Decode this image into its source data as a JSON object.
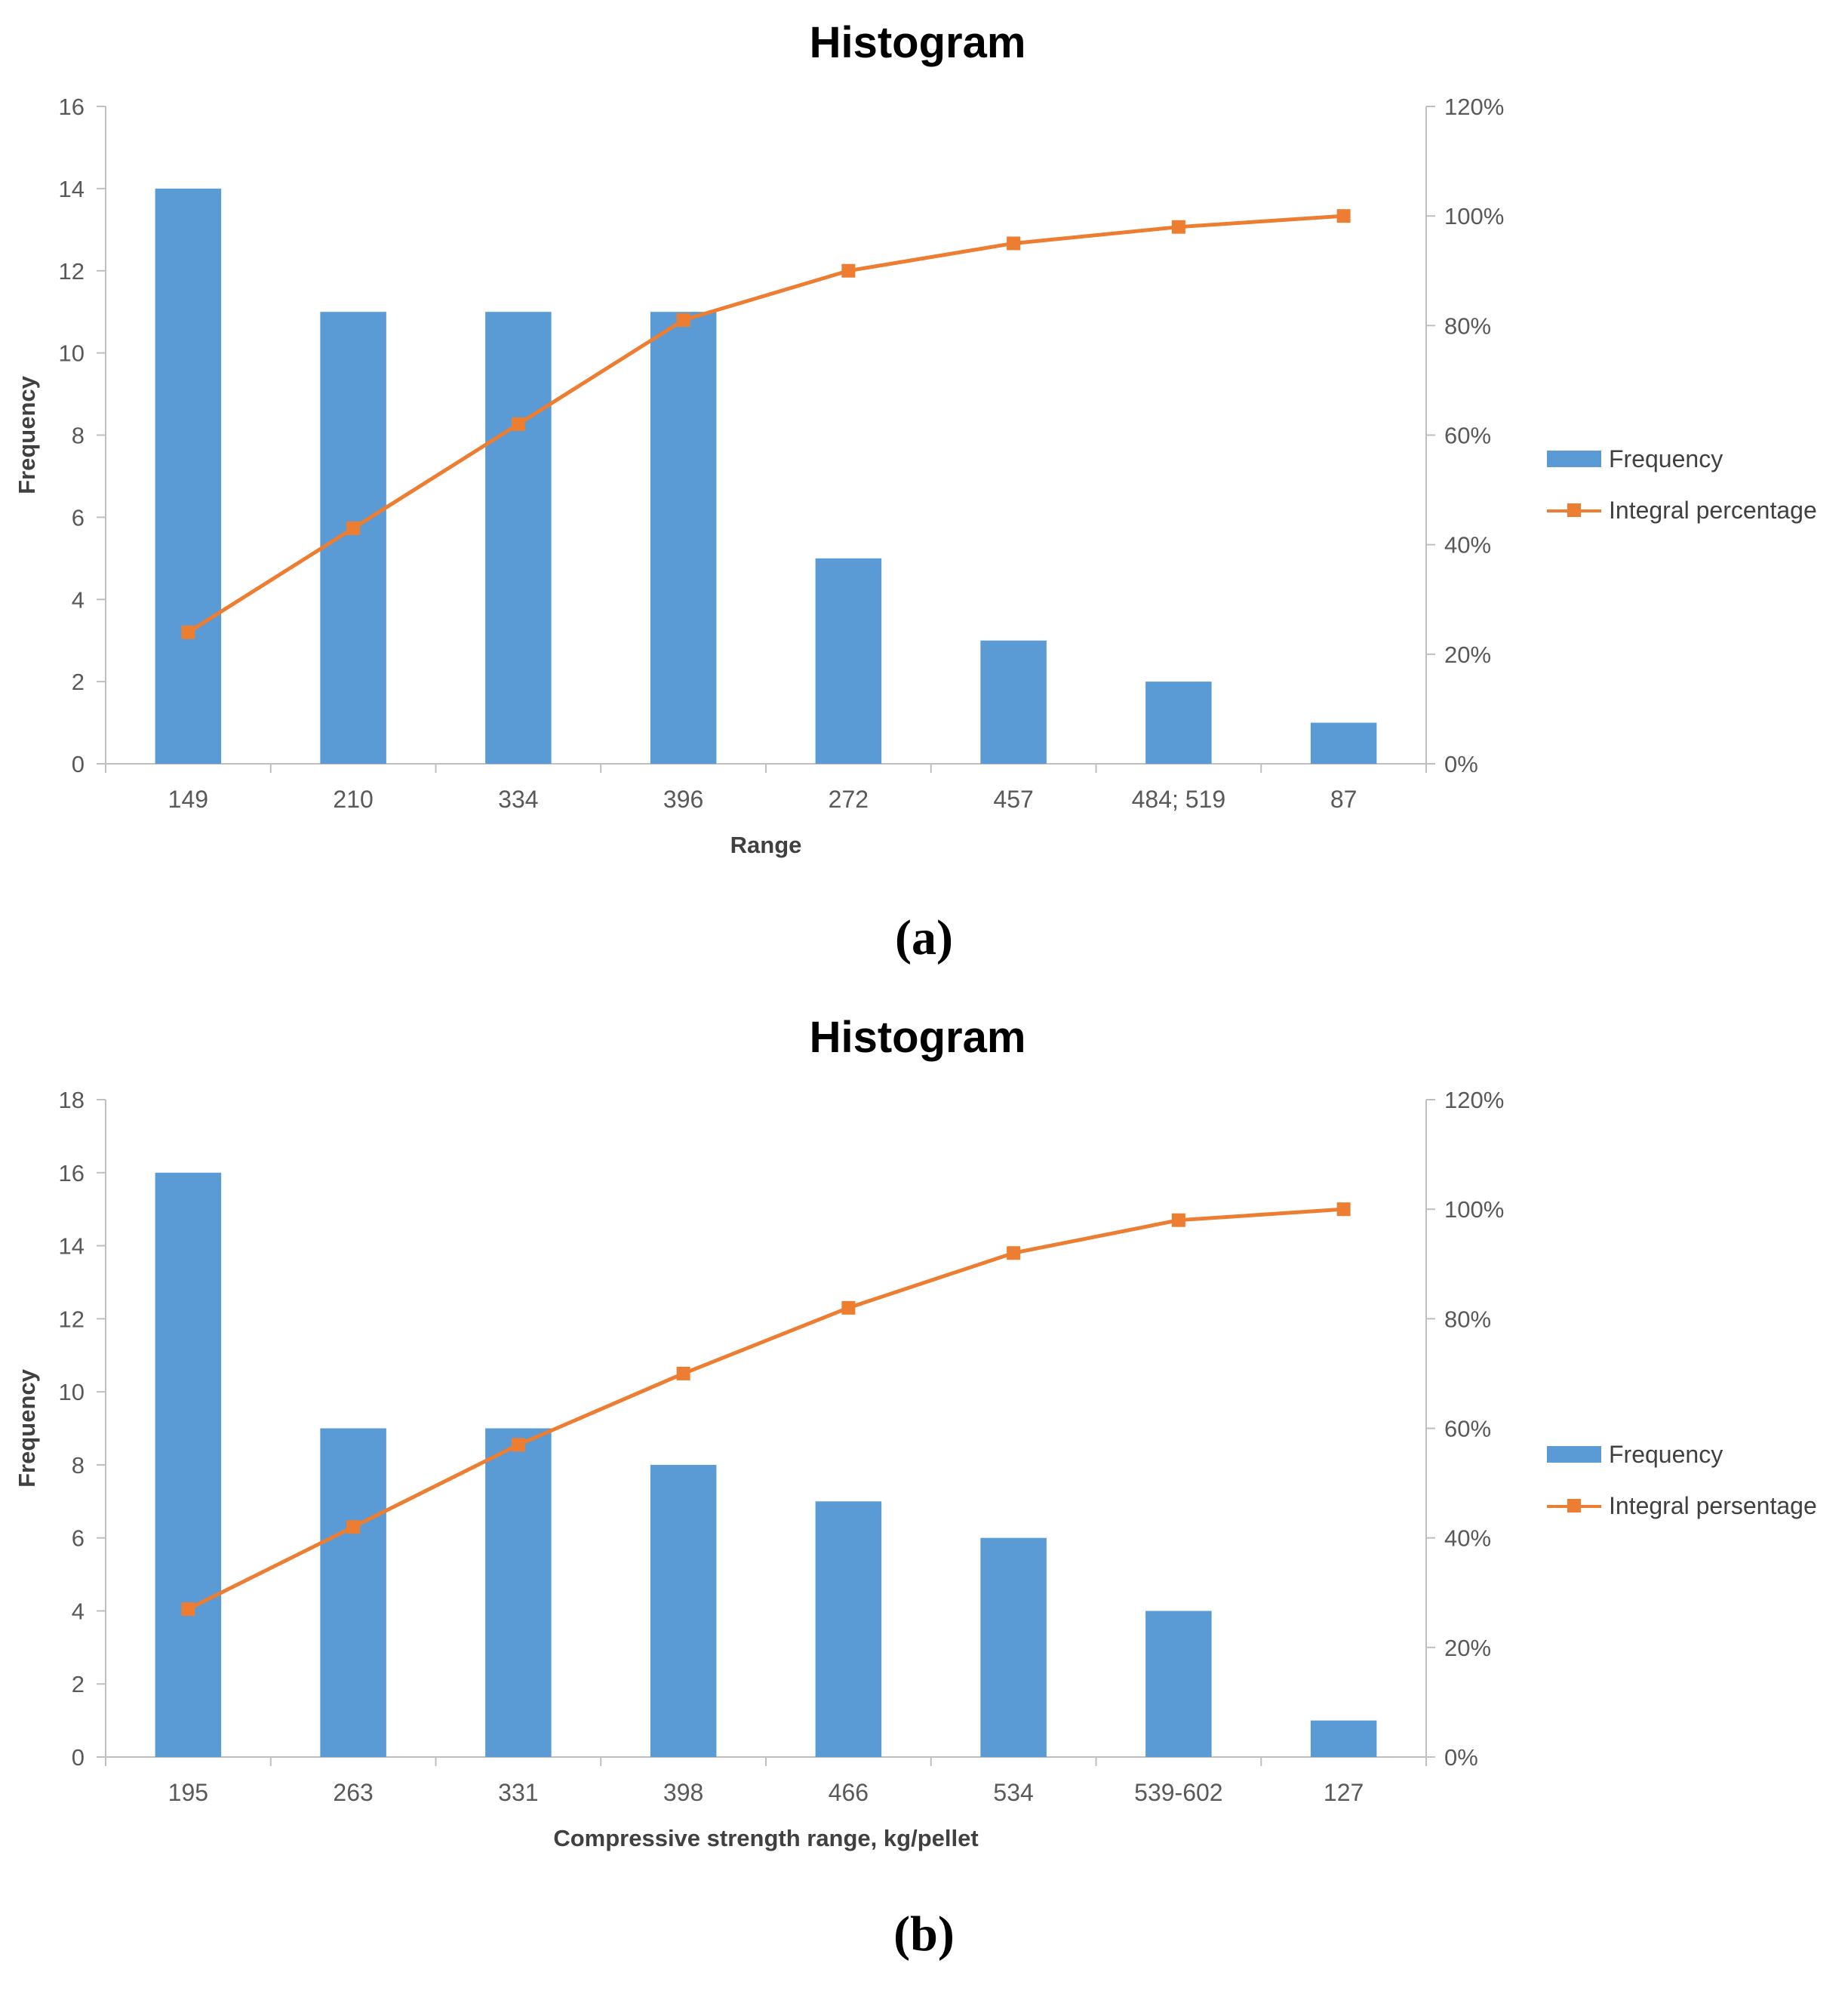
{
  "chart_data": [
    {
      "type": "bar",
      "panel": "(a)",
      "title": "Histogram",
      "xlabel": "Range",
      "ylabel": "Frequency",
      "ylim": [
        0,
        16
      ],
      "yticks": [
        "0",
        "2",
        "4",
        "6",
        "8",
        "10",
        "12",
        "14",
        "16"
      ],
      "y2lim": [
        0,
        120
      ],
      "y2ticks": [
        "0%",
        "20%",
        "40%",
        "60%",
        "80%",
        "100%",
        "120%"
      ],
      "categories": [
        "149",
        "210",
        "334",
        "396",
        "272",
        "457",
        "484; 519",
        "87"
      ],
      "series": [
        {
          "name": "Frequency",
          "type": "bar",
          "axis": "left",
          "color": "#5b9bd5",
          "values": [
            14,
            11,
            11,
            11,
            5,
            3,
            2,
            1
          ]
        },
        {
          "name": "Integral percentage",
          "type": "line",
          "axis": "right",
          "color": "#ed7d31",
          "values": [
            24,
            43,
            62,
            81,
            90,
            95,
            98,
            100
          ]
        }
      ],
      "legend": "right"
    },
    {
      "type": "bar",
      "panel": "(b)",
      "title": "Histogram",
      "xlabel": "Compressive strength range, kg/pellet",
      "ylabel": "Frequency",
      "ylim": [
        0,
        18
      ],
      "yticks": [
        "0",
        "2",
        "4",
        "6",
        "8",
        "10",
        "12",
        "14",
        "16",
        "18"
      ],
      "y2lim": [
        0,
        120
      ],
      "y2ticks": [
        "0%",
        "20%",
        "40%",
        "60%",
        "80%",
        "100%",
        "120%"
      ],
      "categories": [
        "195",
        "263",
        "331",
        "398",
        "466",
        "534",
        "539-602",
        "127"
      ],
      "series": [
        {
          "name": "Frequency",
          "type": "bar",
          "axis": "left",
          "color": "#5b9bd5",
          "values": [
            16,
            9,
            9,
            8,
            7,
            6,
            4,
            1
          ]
        },
        {
          "name": "Integral persentage",
          "type": "line",
          "axis": "right",
          "color": "#ed7d31",
          "values": [
            27,
            42,
            57,
            70,
            82,
            92,
            98,
            100
          ]
        }
      ],
      "legend": "right"
    }
  ]
}
